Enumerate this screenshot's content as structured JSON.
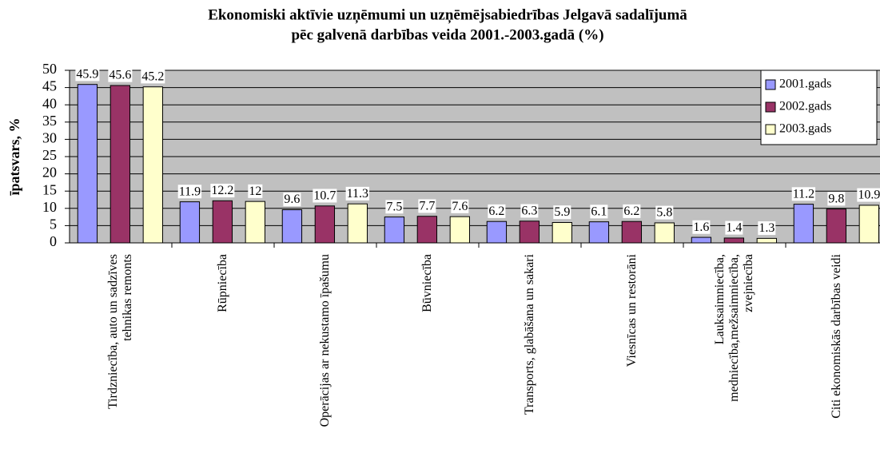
{
  "chart_data": {
    "type": "bar",
    "title": [
      "Ekonomiski aktīvie uzņēmumi un uzņēmējsabiedrības Jelgavā sadalījumā",
      "pēc galvenā darbības veida 2001.-2003.gadā (%)"
    ],
    "y_label": "īpatsvars, %",
    "categories": [
      "Tirdzniecība, auto un sadzīves tehnikas remonts",
      "Rūpniecība",
      "Operācijas ar nekustamo īpašumu",
      "Būvniecība",
      "Transports, glabāšana un sakari",
      "Viesnīcas un restorāni",
      "Lauksaimniecība, medniecība,mežsaimniecība, zvejniecība",
      "Citi ekonomiskās darbības veidi"
    ],
    "series": [
      {
        "name": "2001.gads",
        "color": "#9999ff",
        "values": [
          45.9,
          11.9,
          9.6,
          7.5,
          6.2,
          6.1,
          1.6,
          11.2
        ]
      },
      {
        "name": "2002.gads",
        "color": "#993366",
        "values": [
          45.6,
          12.2,
          10.7,
          7.7,
          6.3,
          6.2,
          1.4,
          9.8
        ]
      },
      {
        "name": "2003.gads",
        "color": "#ffffcc",
        "values": [
          45.2,
          12,
          11.3,
          7.6,
          5.9,
          5.8,
          1.3,
          10.9
        ]
      }
    ],
    "ylim": [
      0,
      50
    ],
    "yticks": [
      0,
      5,
      10,
      15,
      20,
      25,
      30,
      35,
      40,
      45,
      50
    ],
    "grid": true,
    "legend": "upper right",
    "plot_background": "#c0c0c0"
  }
}
